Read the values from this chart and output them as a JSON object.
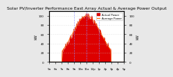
{
  "title": "Solar PV/Inverter Performance East Array Actual & Average Power Output",
  "title_fontsize": 4.5,
  "bg_color": "#e8e8e8",
  "plot_bg_color": "#ffffff",
  "fill_color": "#dd0000",
  "line_color": "#cc0000",
  "avg_line_color": "#ff6600",
  "dashed_line_color": "#aaaaff",
  "ylabel_left": "kW",
  "ylabel_right": "kW",
  "ylabel_fontsize": 3.5,
  "tick_fontsize": 3.0,
  "xlim": [
    0,
    144
  ],
  "ylim": [
    0,
    110
  ],
  "yticks_left": [
    0,
    20,
    40,
    60,
    80,
    100
  ],
  "yticks_right": [
    0,
    20,
    40,
    60,
    80,
    100
  ],
  "grid_color": "#cccccc",
  "vline_color": "#8888ff",
  "legend_items": [
    "Actual Power",
    "Average Power"
  ],
  "legend_colors": [
    "#dd0000",
    "#ff6600"
  ]
}
